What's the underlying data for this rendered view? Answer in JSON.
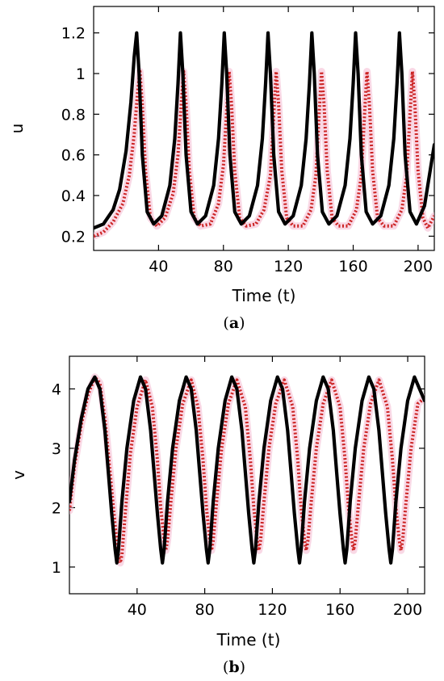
{
  "chart_data": [
    {
      "type": "line",
      "panel_label": "(a)",
      "xlabel": "Time (t)",
      "ylabel": "u",
      "xlim": [
        0,
        210
      ],
      "ylim": [
        0.13,
        1.33
      ],
      "xticks": [
        "40",
        "80",
        "120",
        "160",
        "200"
      ],
      "yticks": [
        "0.2",
        "0.4",
        "0.6",
        "0.8",
        "1",
        "1.2"
      ],
      "grid": false,
      "legend": "none",
      "series": [
        {
          "color": "#000000",
          "style": "solid",
          "x": [
            0,
            6,
            12,
            16,
            20,
            23,
            25,
            26.5,
            28,
            30,
            33,
            37,
            42,
            47,
            50,
            52,
            53.5,
            55,
            57,
            60,
            64,
            69,
            74,
            77,
            79,
            80.5,
            82,
            84,
            87,
            91,
            96,
            101,
            104,
            106,
            107.5,
            109,
            111,
            114,
            118,
            123,
            128,
            131,
            133,
            134.5,
            136,
            138,
            141,
            145,
            150,
            155,
            158,
            160,
            161.5,
            163,
            165,
            168,
            172,
            177,
            182,
            185,
            187,
            188.5,
            190,
            192,
            195,
            199,
            204,
            210
          ],
          "y": [
            0.24,
            0.26,
            0.33,
            0.43,
            0.62,
            0.86,
            1.08,
            1.2,
            1.0,
            0.6,
            0.32,
            0.26,
            0.3,
            0.45,
            0.68,
            0.95,
            1.2,
            1.0,
            0.6,
            0.32,
            0.26,
            0.3,
            0.45,
            0.68,
            0.95,
            1.2,
            1.0,
            0.6,
            0.32,
            0.26,
            0.3,
            0.45,
            0.68,
            0.95,
            1.2,
            1.0,
            0.6,
            0.32,
            0.26,
            0.3,
            0.45,
            0.68,
            0.95,
            1.2,
            1.0,
            0.6,
            0.32,
            0.26,
            0.3,
            0.45,
            0.68,
            0.95,
            1.2,
            1.0,
            0.6,
            0.32,
            0.26,
            0.3,
            0.45,
            0.68,
            0.95,
            1.2,
            1.0,
            0.6,
            0.32,
            0.26,
            0.35,
            0.65
          ]
        },
        {
          "color": "#cc2222",
          "style": "dotted",
          "x": [
            0,
            6,
            12,
            18,
            22,
            25,
            27,
            28.5,
            30,
            32,
            35,
            39,
            44,
            49,
            52,
            54,
            55.5,
            57,
            59,
            62,
            66,
            72,
            77,
            80,
            82,
            83.5,
            85,
            87,
            90,
            94,
            100,
            105,
            109,
            111,
            112.5,
            114,
            116,
            119,
            123,
            129,
            134,
            137,
            139,
            140.5,
            142,
            144,
            147,
            151,
            157,
            162,
            165,
            167,
            168.5,
            170,
            172,
            175,
            179,
            185,
            190,
            193,
            195,
            196.5,
            198,
            200,
            203,
            206,
            210
          ],
          "y": [
            0.2,
            0.22,
            0.27,
            0.36,
            0.5,
            0.7,
            0.9,
            1.01,
            0.85,
            0.52,
            0.29,
            0.25,
            0.29,
            0.41,
            0.6,
            0.85,
            1.01,
            0.85,
            0.52,
            0.29,
            0.25,
            0.26,
            0.36,
            0.55,
            0.82,
            1.01,
            0.85,
            0.52,
            0.29,
            0.25,
            0.26,
            0.33,
            0.5,
            0.8,
            1.01,
            0.85,
            0.52,
            0.29,
            0.25,
            0.25,
            0.33,
            0.5,
            0.8,
            1.01,
            0.85,
            0.52,
            0.29,
            0.25,
            0.25,
            0.33,
            0.5,
            0.8,
            1.01,
            0.85,
            0.52,
            0.29,
            0.25,
            0.25,
            0.33,
            0.5,
            0.8,
            1.01,
            0.85,
            0.52,
            0.29,
            0.24,
            0.3
          ]
        }
      ]
    },
    {
      "type": "line",
      "panel_label": "(b)",
      "xlabel": "Time (t)",
      "ylabel": "v",
      "xlim": [
        0,
        210
      ],
      "ylim": [
        0.55,
        4.55
      ],
      "xticks": [
        "40",
        "80",
        "120",
        "160",
        "200"
      ],
      "yticks": [
        "1",
        "2",
        "3",
        "4"
      ],
      "grid": false,
      "legend": "none",
      "series": [
        {
          "color": "#000000",
          "style": "solid",
          "x": [
            0,
            3,
            7,
            11,
            15,
            18,
            21,
            23,
            25,
            27,
            28,
            29,
            31,
            34,
            38,
            42,
            45,
            48,
            50,
            52,
            54,
            55,
            56,
            58,
            61,
            65,
            69,
            72,
            75,
            77,
            79,
            81,
            82,
            83,
            85,
            88,
            92,
            96,
            99,
            102,
            104,
            106,
            108,
            109,
            110,
            112,
            115,
            119,
            123,
            126,
            129,
            131,
            133,
            135,
            136,
            137,
            139,
            142,
            146,
            150,
            153,
            156,
            158,
            160,
            162,
            163,
            164,
            166,
            169,
            173,
            177,
            180,
            183,
            185,
            187,
            189,
            190,
            191,
            193,
            196,
            200,
            204,
            207,
            210
          ],
          "y": [
            2.1,
            2.8,
            3.5,
            4.0,
            4.2,
            4.0,
            3.3,
            2.6,
            1.9,
            1.3,
            1.07,
            1.3,
            2.1,
            3.0,
            3.8,
            4.2,
            4.0,
            3.3,
            2.6,
            1.9,
            1.3,
            1.07,
            1.3,
            2.1,
            3.0,
            3.8,
            4.2,
            4.0,
            3.3,
            2.6,
            1.9,
            1.3,
            1.07,
            1.3,
            2.1,
            3.0,
            3.8,
            4.2,
            4.0,
            3.3,
            2.6,
            1.9,
            1.3,
            1.07,
            1.3,
            2.1,
            3.0,
            3.8,
            4.2,
            4.0,
            3.3,
            2.6,
            1.9,
            1.3,
            1.07,
            1.3,
            2.1,
            3.0,
            3.8,
            4.2,
            4.0,
            3.3,
            2.6,
            1.9,
            1.3,
            1.07,
            1.3,
            2.1,
            3.0,
            3.8,
            4.2,
            4.0,
            3.3,
            2.6,
            1.9,
            1.3,
            1.07,
            1.3,
            2.1,
            3.0,
            3.8,
            4.2,
            4.0,
            3.8
          ]
        },
        {
          "color": "#cc2222",
          "style": "dotted",
          "x": [
            0,
            3,
            7,
            11,
            15,
            18,
            21,
            24,
            27,
            29,
            30,
            31,
            33,
            36,
            40,
            45,
            49,
            52,
            54,
            56,
            57,
            58,
            60,
            63,
            67,
            72,
            76,
            79,
            81,
            83,
            84,
            85,
            87,
            90,
            94,
            99,
            104,
            107,
            109,
            111,
            112,
            113,
            115,
            118,
            122,
            127,
            132,
            135,
            137,
            139,
            140,
            141,
            143,
            146,
            150,
            155,
            160,
            163,
            165,
            167,
            168,
            169,
            171,
            174,
            178,
            183,
            188,
            191,
            193,
            195,
            196,
            197,
            199,
            202,
            206,
            210
          ],
          "y": [
            1.95,
            2.7,
            3.4,
            3.9,
            4.2,
            4.1,
            3.5,
            2.6,
            1.7,
            1.2,
            1.07,
            1.2,
            1.9,
            2.9,
            3.7,
            4.15,
            3.7,
            2.8,
            2.0,
            1.45,
            1.28,
            1.45,
            2.1,
            3.0,
            3.75,
            4.15,
            3.7,
            2.8,
            2.0,
            1.45,
            1.28,
            1.45,
            2.1,
            3.0,
            3.75,
            4.15,
            3.7,
            2.8,
            2.0,
            1.45,
            1.28,
            1.45,
            2.1,
            3.0,
            3.75,
            4.15,
            3.7,
            2.8,
            2.0,
            1.45,
            1.28,
            1.45,
            2.1,
            3.0,
            3.75,
            4.15,
            3.7,
            2.8,
            2.0,
            1.45,
            1.28,
            1.45,
            2.1,
            3.0,
            3.75,
            4.15,
            3.7,
            2.8,
            2.0,
            1.45,
            1.28,
            1.45,
            2.1,
            3.0,
            3.75,
            3.85
          ]
        }
      ]
    }
  ]
}
